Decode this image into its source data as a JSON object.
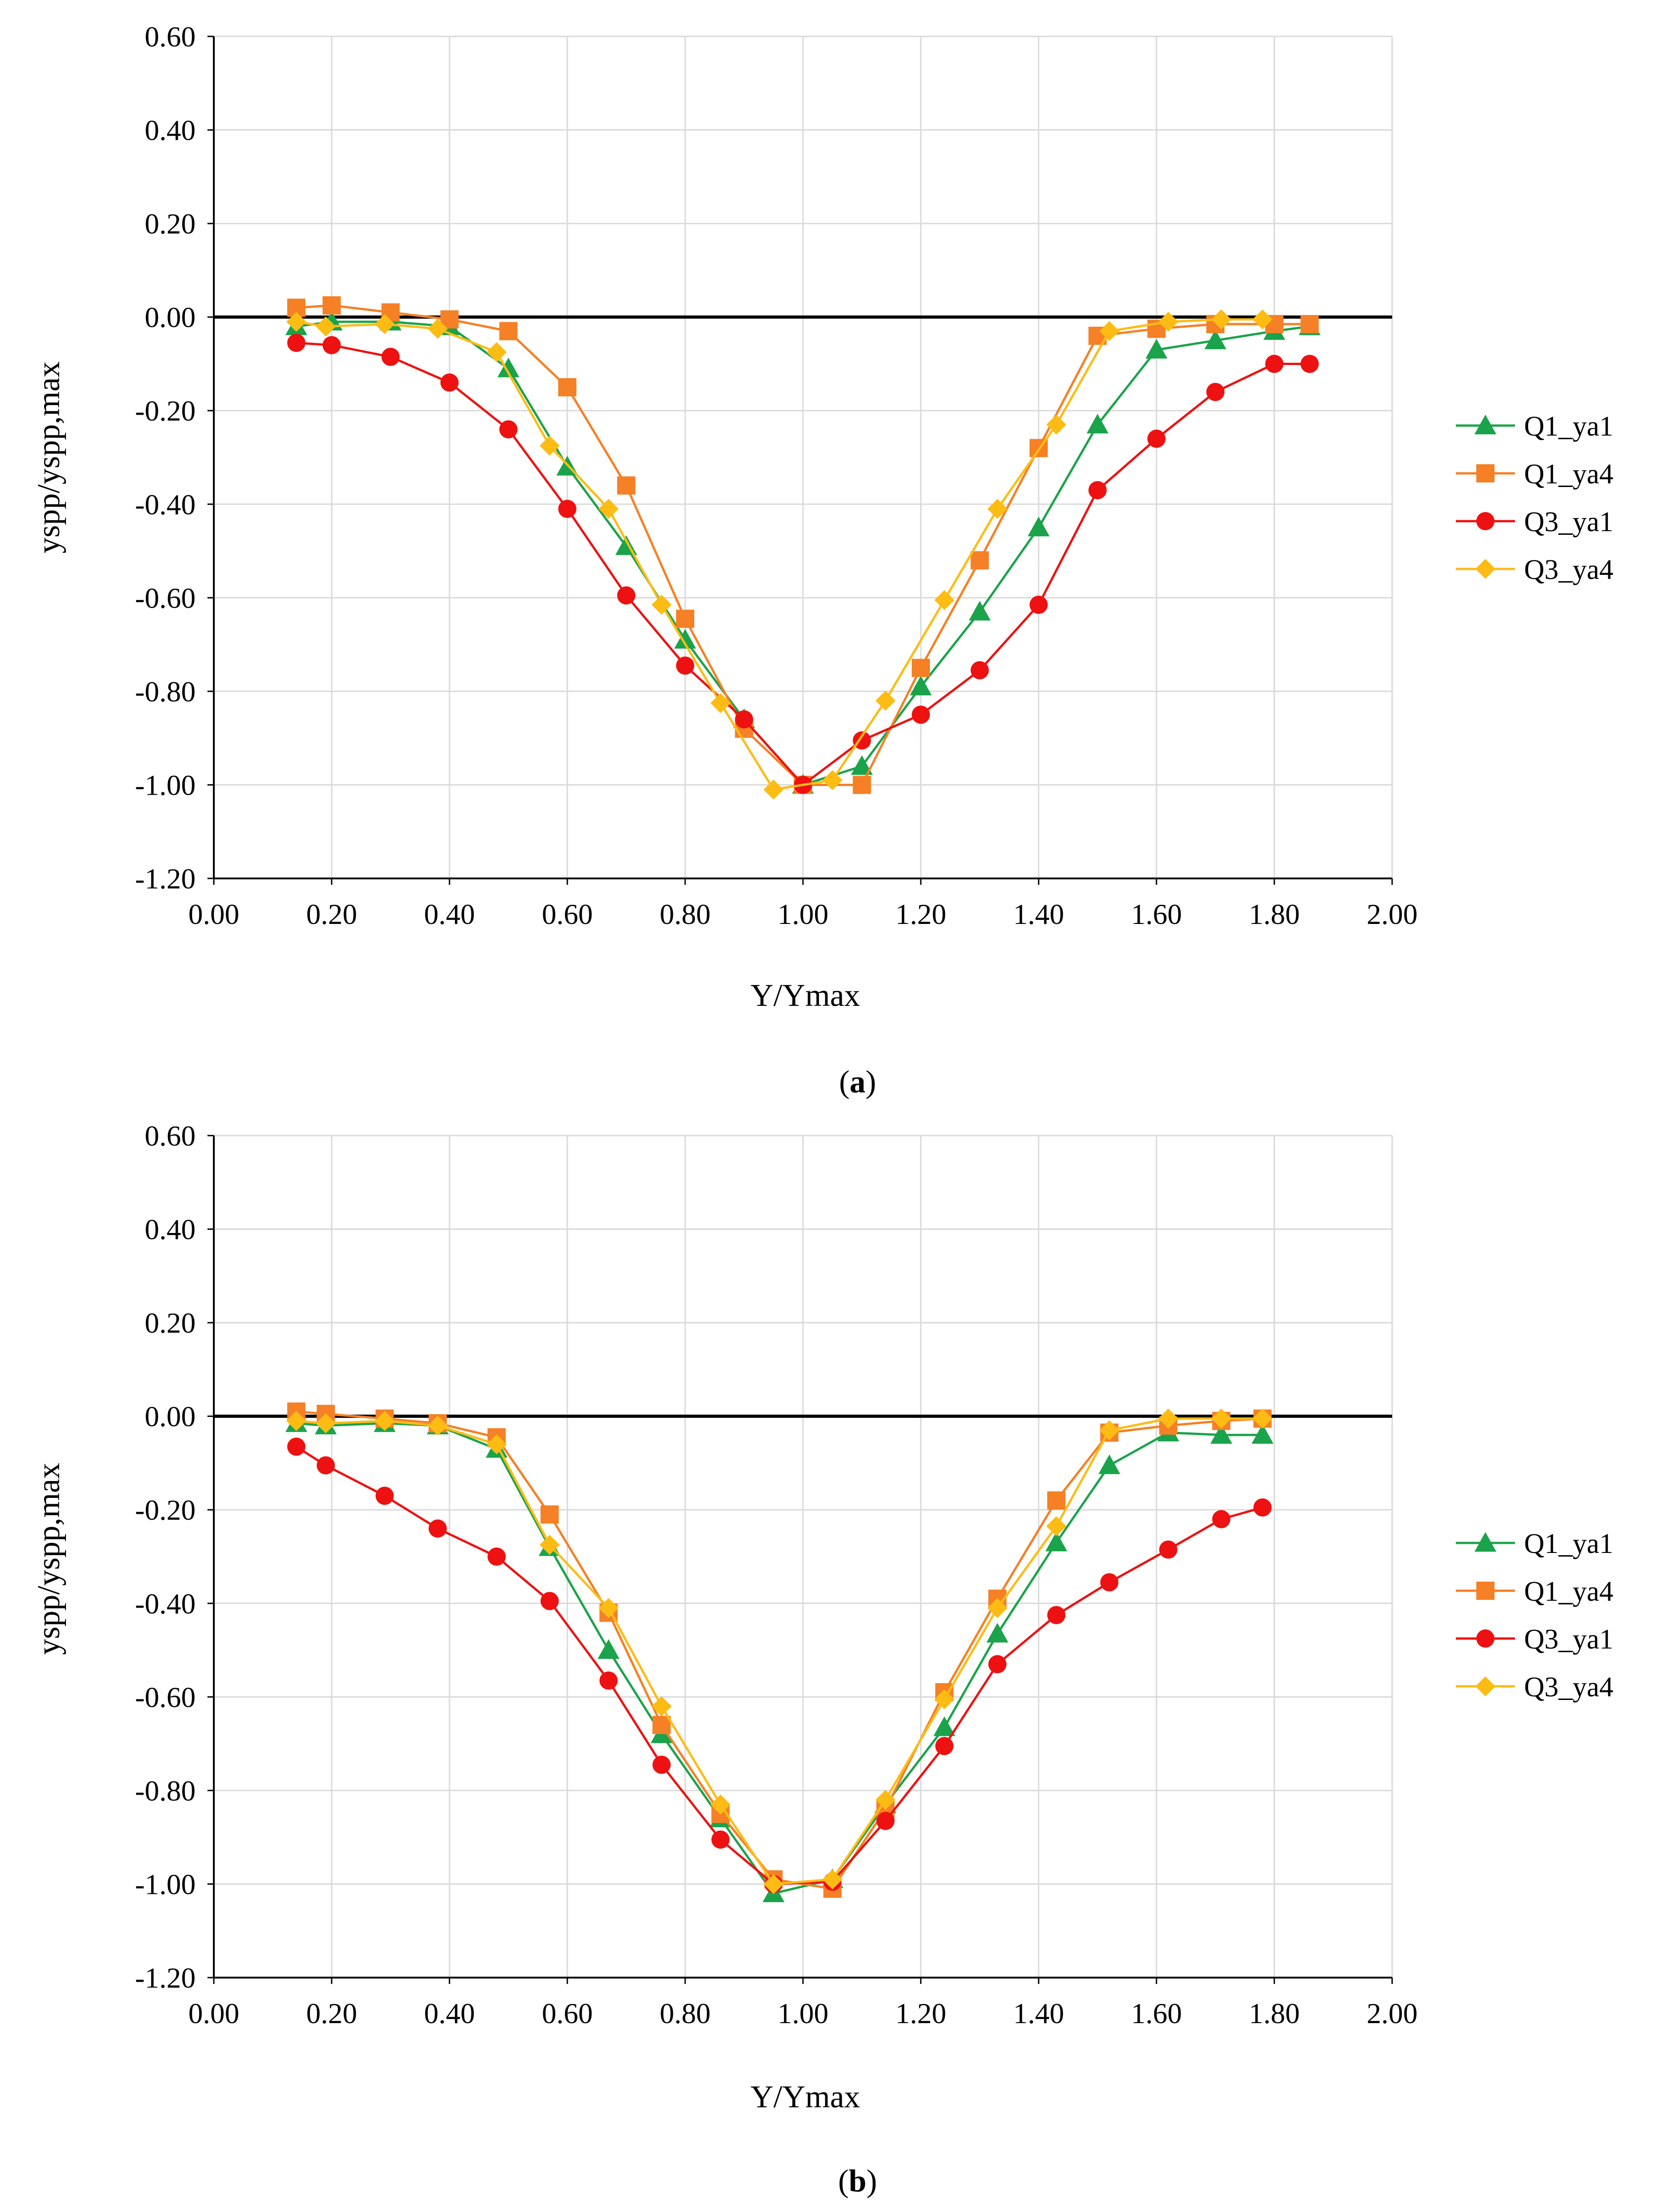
{
  "colors": {
    "Q1_ya1": "#1aa34a",
    "Q1_ya4": "#f58025",
    "Q3_ya1": "#ee1111",
    "Q3_ya4": "#fdbc14",
    "grid": "#d9d9d9",
    "axis": "#000000"
  },
  "chart_data": [
    {
      "type": "line",
      "caption": "(a)",
      "caption_letter": "a",
      "xlabel": "Y/Ymax",
      "ylabel": "yspp/yspp,max",
      "xlim": [
        0,
        2
      ],
      "ylim": [
        -1.2,
        0.6
      ],
      "xticks": [
        "0.00",
        "0.20",
        "0.40",
        "0.60",
        "0.80",
        "1.00",
        "1.20",
        "1.40",
        "1.60",
        "1.80",
        "2.00"
      ],
      "yticks": [
        "0.60",
        "0.40",
        "0.20",
        "0.00",
        "-0.20",
        "-0.40",
        "-0.60",
        "-0.80",
        "-1.00",
        "-1.20"
      ],
      "legend_position": "right",
      "series": [
        {
          "name": "Q1_ya1",
          "marker": "triangle",
          "x": [
            0.14,
            0.2,
            0.3,
            0.4,
            0.5,
            0.6,
            0.7,
            0.8,
            0.9,
            1.0,
            1.1,
            1.2,
            1.3,
            1.4,
            1.5,
            1.6,
            1.7,
            1.8,
            1.86
          ],
          "y": [
            -0.02,
            -0.01,
            -0.01,
            -0.02,
            -0.11,
            -0.32,
            -0.49,
            -0.69,
            -0.86,
            -1.0,
            -0.96,
            -0.79,
            -0.63,
            -0.45,
            -0.23,
            -0.07,
            -0.05,
            -0.03,
            -0.02
          ]
        },
        {
          "name": "Q1_ya4",
          "marker": "square",
          "x": [
            0.14,
            0.2,
            0.3,
            0.4,
            0.5,
            0.6,
            0.7,
            0.8,
            0.9,
            1.0,
            1.1,
            1.2,
            1.3,
            1.4,
            1.5,
            1.6,
            1.7,
            1.8,
            1.86
          ],
          "y": [
            0.02,
            0.025,
            0.01,
            -0.005,
            -0.03,
            -0.15,
            -0.36,
            -0.645,
            -0.88,
            -1.0,
            -1.0,
            -0.75,
            -0.52,
            -0.28,
            -0.04,
            -0.025,
            -0.015,
            -0.015,
            -0.015
          ]
        },
        {
          "name": "Q3_ya1",
          "marker": "circle",
          "x": [
            0.14,
            0.2,
            0.3,
            0.4,
            0.5,
            0.6,
            0.7,
            0.8,
            0.9,
            1.0,
            1.1,
            1.2,
            1.3,
            1.4,
            1.5,
            1.6,
            1.7,
            1.8,
            1.86
          ],
          "y": [
            -0.055,
            -0.06,
            -0.085,
            -0.14,
            -0.24,
            -0.41,
            -0.595,
            -0.745,
            -0.86,
            -1.0,
            -0.905,
            -0.85,
            -0.755,
            -0.615,
            -0.37,
            -0.26,
            -0.16,
            -0.1,
            -0.1
          ]
        },
        {
          "name": "Q3_ya4",
          "marker": "diamond",
          "x": [
            0.14,
            0.19,
            0.29,
            0.38,
            0.48,
            0.57,
            0.67,
            0.76,
            0.86,
            0.95,
            1.05,
            1.14,
            1.24,
            1.33,
            1.43,
            1.52,
            1.62,
            1.71,
            1.78
          ],
          "y": [
            -0.01,
            -0.02,
            -0.015,
            -0.025,
            -0.075,
            -0.275,
            -0.41,
            -0.615,
            -0.825,
            -1.01,
            -0.99,
            -0.82,
            -0.605,
            -0.41,
            -0.23,
            -0.03,
            -0.01,
            -0.005,
            -0.005
          ]
        }
      ]
    },
    {
      "type": "line",
      "caption": "(b)",
      "caption_letter": "b",
      "xlabel": "Y/Ymax",
      "ylabel": "yspp/yspp,max",
      "xlim": [
        0,
        2
      ],
      "ylim": [
        -1.2,
        0.6
      ],
      "xticks": [
        "0.00",
        "0.20",
        "0.40",
        "0.60",
        "0.80",
        "1.00",
        "1.20",
        "1.40",
        "1.60",
        "1.80",
        "2.00"
      ],
      "yticks": [
        "0.60",
        "0.40",
        "0.20",
        "0.00",
        "-0.20",
        "-0.40",
        "-0.60",
        "-0.80",
        "-1.00",
        "-1.20"
      ],
      "legend_position": "right",
      "series": [
        {
          "name": "Q1_ya1",
          "marker": "triangle",
          "x": [
            0.14,
            0.19,
            0.29,
            0.38,
            0.48,
            0.57,
            0.67,
            0.76,
            0.86,
            0.95,
            1.05,
            1.14,
            1.24,
            1.33,
            1.43,
            1.52,
            1.62,
            1.71,
            1.78
          ],
          "y": [
            -0.015,
            -0.02,
            -0.015,
            -0.02,
            -0.07,
            -0.28,
            -0.5,
            -0.68,
            -0.86,
            -1.02,
            -0.99,
            -0.83,
            -0.665,
            -0.465,
            -0.27,
            -0.105,
            -0.035,
            -0.04,
            -0.04
          ]
        },
        {
          "name": "Q1_ya4",
          "marker": "square",
          "x": [
            0.14,
            0.19,
            0.29,
            0.38,
            0.48,
            0.57,
            0.67,
            0.76,
            0.86,
            0.95,
            1.05,
            1.14,
            1.24,
            1.33,
            1.43,
            1.52,
            1.62,
            1.71,
            1.78
          ],
          "y": [
            0.01,
            0.005,
            -0.005,
            -0.015,
            -0.045,
            -0.21,
            -0.42,
            -0.66,
            -0.85,
            -0.99,
            -1.01,
            -0.84,
            -0.59,
            -0.39,
            -0.18,
            -0.035,
            -0.02,
            -0.01,
            -0.005
          ]
        },
        {
          "name": "Q3_ya1",
          "marker": "circle",
          "x": [
            0.14,
            0.19,
            0.29,
            0.38,
            0.48,
            0.57,
            0.67,
            0.76,
            0.86,
            0.95,
            1.05,
            1.14,
            1.24,
            1.33,
            1.43,
            1.52,
            1.62,
            1.71,
            1.78
          ],
          "y": [
            -0.065,
            -0.105,
            -0.17,
            -0.24,
            -0.3,
            -0.395,
            -0.565,
            -0.745,
            -0.905,
            -1.0,
            -0.995,
            -0.865,
            -0.705,
            -0.53,
            -0.425,
            -0.355,
            -0.285,
            -0.22,
            -0.195
          ]
        },
        {
          "name": "Q3_ya4",
          "marker": "diamond",
          "x": [
            0.14,
            0.19,
            0.29,
            0.38,
            0.48,
            0.57,
            0.67,
            0.76,
            0.86,
            0.95,
            1.05,
            1.14,
            1.24,
            1.33,
            1.43,
            1.52,
            1.62,
            1.71,
            1.78
          ],
          "y": [
            -0.01,
            -0.015,
            -0.01,
            -0.02,
            -0.06,
            -0.275,
            -0.41,
            -0.62,
            -0.83,
            -1.0,
            -0.99,
            -0.82,
            -0.605,
            -0.41,
            -0.235,
            -0.03,
            -0.005,
            -0.005,
            -0.005
          ]
        }
      ]
    }
  ]
}
